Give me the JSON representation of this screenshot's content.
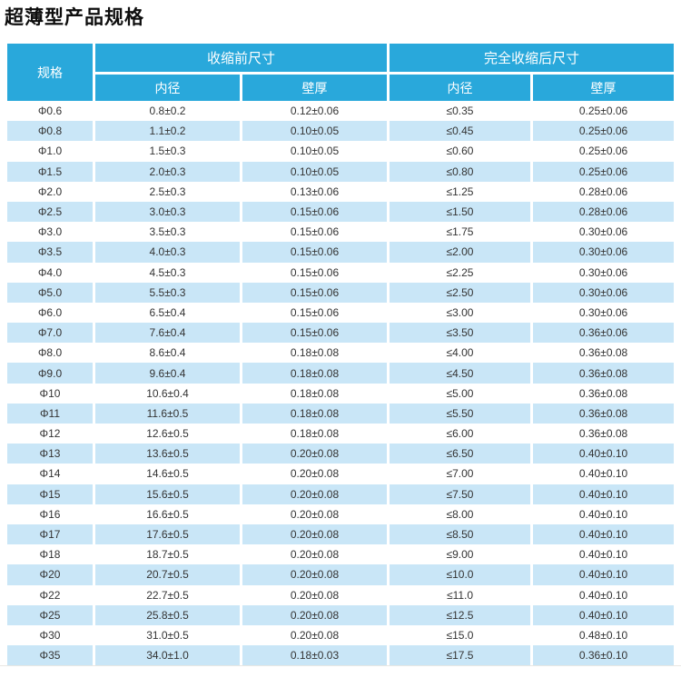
{
  "title": "超薄型产品规格",
  "colors": {
    "header_bg": "#29a8db",
    "header_text": "#ffffff",
    "stripe_row_bg": "#c9e6f7",
    "plain_row_bg": "#ffffff",
    "body_text": "#333333",
    "title_text": "#0e0e0e"
  },
  "chart_data": {
    "type": "table",
    "title": "超薄型产品规格",
    "header": {
      "spec": "规格",
      "before_group": "收缩前尺寸",
      "after_group": "完全收缩后尺寸",
      "sub": [
        "内径",
        "壁厚",
        "内径",
        "壁厚"
      ]
    },
    "rows": [
      [
        "Φ0.6",
        "0.8±0.2",
        "0.12±0.06",
        "≤0.35",
        "0.25±0.06"
      ],
      [
        "Φ0.8",
        "1.1±0.2",
        "0.10±0.05",
        "≤0.45",
        "0.25±0.06"
      ],
      [
        "Φ1.0",
        "1.5±0.3",
        "0.10±0.05",
        "≤0.60",
        "0.25±0.06"
      ],
      [
        "Φ1.5",
        "2.0±0.3",
        "0.10±0.05",
        "≤0.80",
        "0.25±0.06"
      ],
      [
        "Φ2.0",
        "2.5±0.3",
        "0.13±0.06",
        "≤1.25",
        "0.28±0.06"
      ],
      [
        "Φ2.5",
        "3.0±0.3",
        "0.15±0.06",
        "≤1.50",
        "0.28±0.06"
      ],
      [
        "Φ3.0",
        "3.5±0.3",
        "0.15±0.06",
        "≤1.75",
        "0.30±0.06"
      ],
      [
        "Φ3.5",
        "4.0±0.3",
        "0.15±0.06",
        "≤2.00",
        "0.30±0.06"
      ],
      [
        "Φ4.0",
        "4.5±0.3",
        "0.15±0.06",
        "≤2.25",
        "0.30±0.06"
      ],
      [
        "Φ5.0",
        "5.5±0.3",
        "0.15±0.06",
        "≤2.50",
        "0.30±0.06"
      ],
      [
        "Φ6.0",
        "6.5±0.4",
        "0.15±0.06",
        "≤3.00",
        "0.30±0.06"
      ],
      [
        "Φ7.0",
        "7.6±0.4",
        "0.15±0.06",
        "≤3.50",
        "0.36±0.06"
      ],
      [
        "Φ8.0",
        "8.6±0.4",
        "0.18±0.08",
        "≤4.00",
        "0.36±0.08"
      ],
      [
        "Φ9.0",
        "9.6±0.4",
        "0.18±0.08",
        "≤4.50",
        "0.36±0.08"
      ],
      [
        "Φ10",
        "10.6±0.4",
        "0.18±0.08",
        "≤5.00",
        "0.36±0.08"
      ],
      [
        "Φ11",
        "11.6±0.5",
        "0.18±0.08",
        "≤5.50",
        "0.36±0.08"
      ],
      [
        "Φ12",
        "12.6±0.5",
        "0.18±0.08",
        "≤6.00",
        "0.36±0.08"
      ],
      [
        "Φ13",
        "13.6±0.5",
        "0.20±0.08",
        "≤6.50",
        "0.40±0.10"
      ],
      [
        "Φ14",
        "14.6±0.5",
        "0.20±0.08",
        "≤7.00",
        "0.40±0.10"
      ],
      [
        "Φ15",
        "15.6±0.5",
        "0.20±0.08",
        "≤7.50",
        "0.40±0.10"
      ],
      [
        "Φ16",
        "16.6±0.5",
        "0.20±0.08",
        "≤8.00",
        "0.40±0.10"
      ],
      [
        "Φ17",
        "17.6±0.5",
        "0.20±0.08",
        "≤8.50",
        "0.40±0.10"
      ],
      [
        "Φ18",
        "18.7±0.5",
        "0.20±0.08",
        "≤9.00",
        "0.40±0.10"
      ],
      [
        "Φ20",
        "20.7±0.5",
        "0.20±0.08",
        "≤10.0",
        "0.40±0.10"
      ],
      [
        "Φ22",
        "22.7±0.5",
        "0.20±0.08",
        "≤11.0",
        "0.40±0.10"
      ],
      [
        "Φ25",
        "25.8±0.5",
        "0.20±0.08",
        "≤12.5",
        "0.40±0.10"
      ],
      [
        "Φ30",
        "31.0±0.5",
        "0.20±0.08",
        "≤15.0",
        "0.48±0.10"
      ],
      [
        "Φ35",
        "34.0±1.0",
        "0.18±0.03",
        "≤17.5",
        "0.36±0.10"
      ]
    ]
  }
}
